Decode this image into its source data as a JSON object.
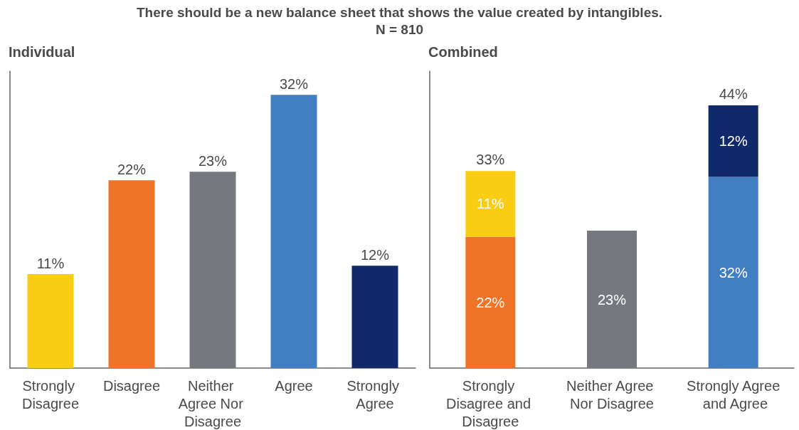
{
  "chart_data": [
    {
      "type": "bar",
      "title": "There should be a new balance sheet that shows the value created by intangibles.",
      "subtitle": "N = 810",
      "annotations": [
        "Individual"
      ],
      "categories": [
        "Strongly Disagree",
        "Disagree",
        "Neither Agree Nor Disagree",
        "Agree",
        "Strongly Agree"
      ],
      "values": [
        11,
        22,
        23,
        32,
        12
      ],
      "colors": [
        "#f9cd14",
        "#f07427",
        "#767880",
        "#427ec2",
        "#0f296b"
      ],
      "value_labels": [
        "11%",
        "22%",
        "23%",
        "32%",
        "12%"
      ],
      "tick_labels": "x",
      "grid": false
    },
    {
      "type": "bar",
      "title": "Combined",
      "stacked": true,
      "categories": [
        "Strongly Disagree and Disagree",
        "Neither Agree Nor Disagree",
        "Strongly Agree and Agree"
      ],
      "series": [
        {
          "color": "#f07427",
          "values": [
            22,
            null,
            null
          ],
          "value_labels": [
            "22%",
            null,
            null
          ]
        },
        {
          "color": "#f9cd14",
          "values": [
            11,
            null,
            null
          ],
          "value_labels": [
            "11%",
            null,
            null
          ]
        },
        {
          "color": "#767880",
          "values": [
            null,
            23,
            null
          ],
          "value_labels": [
            null,
            "23%",
            null
          ]
        },
        {
          "color": "#427ec2",
          "values": [
            null,
            null,
            32
          ],
          "value_labels": [
            null,
            null,
            "32%"
          ]
        },
        {
          "color": "#0f296b",
          "values": [
            null,
            null,
            12
          ],
          "value_labels": [
            null,
            null,
            "12%"
          ]
        }
      ],
      "totals": [
        "33%",
        null,
        "44%"
      ],
      "tick_labels": "x",
      "grid": false
    }
  ]
}
